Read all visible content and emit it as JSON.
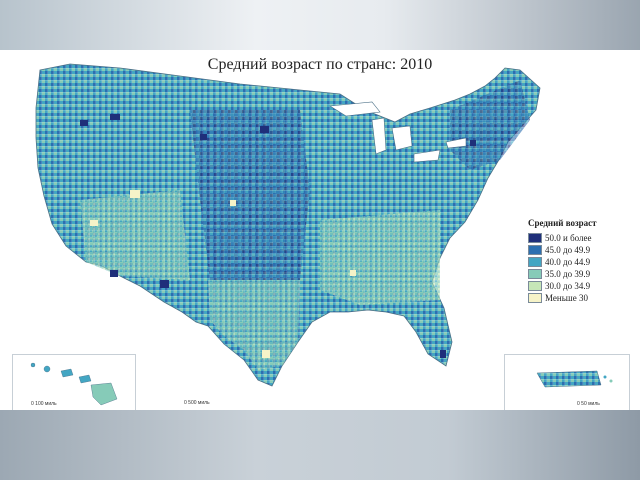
{
  "map": {
    "title": "Средний возраст по странс: 2010"
  },
  "legend": {
    "title": "Средний возраст",
    "items": [
      {
        "label": "50.0 и более",
        "color": "#1f2f7a"
      },
      {
        "label": "45.0 до 49.9",
        "color": "#2c6fb0"
      },
      {
        "label": "40.0 до 44.9",
        "color": "#43a6c3"
      },
      {
        "label": "35.0 до 39.9",
        "color": "#86cbb8"
      },
      {
        "label": "30.0 до 34.9",
        "color": "#c6e6b7"
      },
      {
        "label": "Меньше 30",
        "color": "#f6f3c8"
      }
    ]
  },
  "scales": {
    "hawaii": "0    100 миль",
    "mainland": "0    500 миль",
    "puerto_rico": "0    50 миль"
  }
}
